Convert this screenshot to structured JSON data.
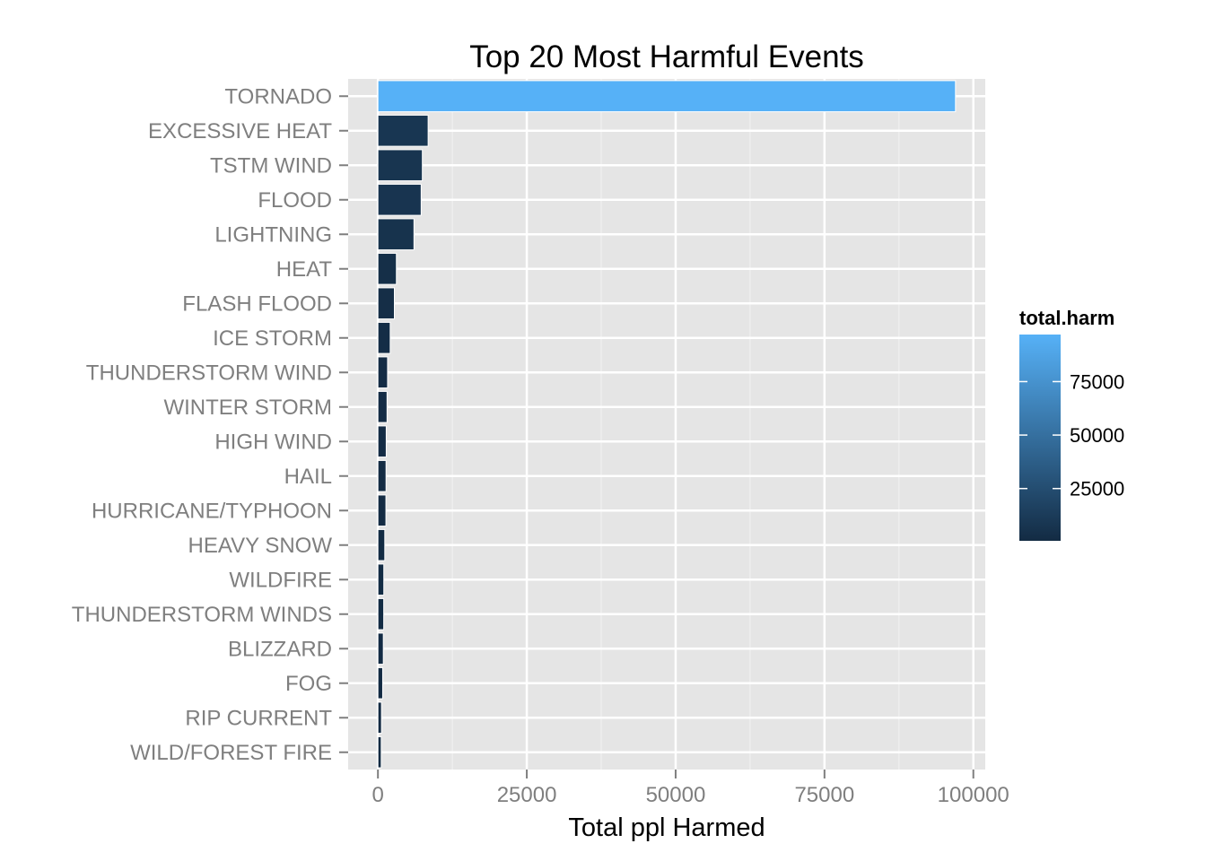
{
  "chart_data": {
    "type": "bar",
    "orientation": "horizontal",
    "title": "Top 20 Most Harmful Events",
    "xlabel": "Total ppl Harmed",
    "ylabel": "",
    "xlim": [
      -5000,
      102000
    ],
    "xticks": [
      0,
      25000,
      50000,
      75000,
      100000
    ],
    "xtick_labels": [
      "0",
      "25000",
      "50000",
      "75000",
      "100000"
    ],
    "grid": true,
    "legend_position": "right",
    "categories": [
      "TORNADO",
      "EXCESSIVE HEAT",
      "TSTM WIND",
      "FLOOD",
      "LIGHTNING",
      "HEAT",
      "FLASH FLOOD",
      "ICE STORM",
      "THUNDERSTORM WIND",
      "WINTER STORM",
      "HIGH WIND",
      "HAIL",
      "HURRICANE/TYPHOON",
      "HEAVY SNOW",
      "WILDFIRE",
      "THUNDERSTORM WINDS",
      "BLIZZARD",
      "FOG",
      "RIP CURRENT",
      "WILD/FOREST FIRE"
    ],
    "values": [
      97000,
      8430,
      7460,
      7260,
      6050,
      3100,
      2760,
      2060,
      1620,
      1530,
      1390,
      1360,
      1340,
      1150,
      986,
      972,
      905,
      796,
      600,
      557
    ],
    "legend": {
      "title": "total.harm",
      "ticks": [
        25000,
        50000,
        75000
      ],
      "tick_labels": [
        "25000",
        "50000",
        "75000"
      ],
      "min": 557,
      "max": 97000,
      "color_low": "#132b43",
      "color_high": "#56b1f7"
    }
  }
}
